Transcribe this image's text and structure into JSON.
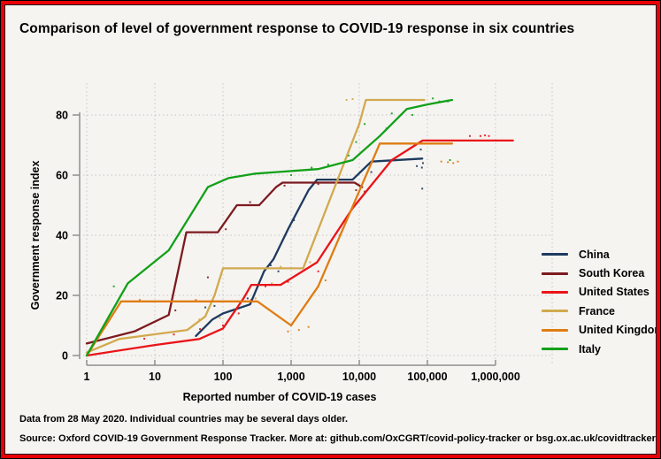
{
  "title": "Comparison of level of government response to COVID-19 response in six countries",
  "footer": {
    "line1": "Data from 28 May 2020. Individual countries may be several days older.",
    "line2": "Source: Oxford COVID-19 Government Response Tracker. More at: github.com/OxCGRT/covid-policy-tracker or bsg.ox.ac.uk/covidtracker"
  },
  "colors": {
    "grid": "#c6c6c6",
    "axis": "#8f8f8f",
    "text": "#000000",
    "background": "#f5f4f1",
    "frame_red": "#e90007"
  },
  "chart_data": {
    "type": "line",
    "title": "Comparison of level of government response to COVID-19 response in six countries",
    "xlabel": "Reported number of COVID-19 cases",
    "ylabel": "Government response index",
    "x_scale": "log",
    "xlim": [
      1,
      2500000
    ],
    "ylim": [
      0,
      88
    ],
    "grid": "dotted",
    "legend_position": "right",
    "x_ticks": [
      {
        "value": 1,
        "label": "1"
      },
      {
        "value": 10,
        "label": "10"
      },
      {
        "value": 100,
        "label": "100"
      },
      {
        "value": 1000,
        "label": "1,000"
      },
      {
        "value": 10000,
        "label": "10,000"
      },
      {
        "value": 100000,
        "label": "100,000"
      },
      {
        "value": 1000000,
        "label": "1,000,000"
      }
    ],
    "y_ticks": [
      {
        "value": 0,
        "label": "0"
      },
      {
        "value": 20,
        "label": "20"
      },
      {
        "value": 40,
        "label": "40"
      },
      {
        "value": 60,
        "label": "60"
      },
      {
        "value": 80,
        "label": "80"
      }
    ],
    "series": [
      {
        "name": "China",
        "color": "#1e3a5f",
        "points": [
          [
            40,
            6.5
          ],
          [
            70,
            12
          ],
          [
            100,
            14
          ],
          [
            250,
            17
          ],
          [
            400,
            28
          ],
          [
            550,
            32
          ],
          [
            900,
            42
          ],
          [
            1800,
            55
          ],
          [
            2400,
            58.5
          ],
          [
            8000,
            58.5
          ],
          [
            15000,
            64.5
          ],
          [
            84000,
            65.5
          ]
        ],
        "dots": [
          [
            55,
            16
          ],
          [
            75,
            16.5
          ],
          [
            230,
            19
          ],
          [
            500,
            30
          ],
          [
            650,
            28
          ],
          [
            1100,
            45
          ],
          [
            15000,
            61
          ],
          [
            70000,
            63
          ],
          [
            80000,
            68.5
          ],
          [
            83000,
            62.5
          ],
          [
            84000,
            55.5
          ],
          [
            86000,
            64
          ]
        ]
      },
      {
        "name": "South Korea",
        "color": "#7d1a20",
        "points": [
          [
            1,
            4
          ],
          [
            5,
            8
          ],
          [
            16,
            13.5
          ],
          [
            29,
            41
          ],
          [
            84,
            41
          ],
          [
            160,
            50
          ],
          [
            340,
            50
          ],
          [
            600,
            56
          ],
          [
            750,
            57.5
          ],
          [
            8500,
            57.5
          ],
          [
            11000,
            56
          ]
        ],
        "dots": [
          [
            1.5,
            5
          ],
          [
            20,
            15
          ],
          [
            60,
            26
          ],
          [
            110,
            42
          ],
          [
            250,
            51
          ],
          [
            800,
            56.5
          ],
          [
            2500,
            57
          ],
          [
            9000,
            55
          ],
          [
            12000,
            54.5
          ]
        ]
      },
      {
        "name": "United States",
        "color": "#ea1418",
        "points": [
          [
            1,
            0
          ],
          [
            10,
            3.5
          ],
          [
            45,
            5.5
          ],
          [
            100,
            9
          ],
          [
            200,
            19
          ],
          [
            260,
            23.5
          ],
          [
            700,
            23.5
          ],
          [
            2400,
            31
          ],
          [
            8000,
            49
          ],
          [
            30000,
            65
          ],
          [
            85000,
            71.5
          ],
          [
            1800000,
            71.5
          ]
        ],
        "dots": [
          [
            7,
            5.6
          ],
          [
            19,
            7
          ],
          [
            46,
            8.8
          ],
          [
            100,
            10
          ],
          [
            170,
            14
          ],
          [
            260,
            18.5
          ],
          [
            420,
            23
          ],
          [
            900,
            24.5
          ],
          [
            2500,
            28
          ],
          [
            5200,
            40
          ],
          [
            420000,
            73
          ],
          [
            600000,
            73
          ],
          [
            700000,
            73.2
          ],
          [
            800000,
            73
          ]
        ]
      },
      {
        "name": "France",
        "color": "#d2a94e",
        "points": [
          [
            1,
            1
          ],
          [
            3,
            5.5
          ],
          [
            30,
            8.5
          ],
          [
            55,
            13
          ],
          [
            75,
            20
          ],
          [
            100,
            29
          ],
          [
            1500,
            29
          ],
          [
            10000,
            77
          ],
          [
            12500,
            85
          ],
          [
            90000,
            85
          ]
        ],
        "dots": [
          [
            45,
            12
          ],
          [
            90,
            12.5
          ],
          [
            300,
            19
          ],
          [
            520,
            24
          ],
          [
            700,
            29.5
          ],
          [
            1900,
            31
          ],
          [
            6500,
            85
          ],
          [
            8000,
            85.3
          ]
        ]
      },
      {
        "name": "United Kingdom",
        "color": "#e07c12",
        "points": [
          [
            1,
            0
          ],
          [
            3.2,
            18
          ],
          [
            320,
            18
          ],
          [
            1000,
            10
          ],
          [
            2500,
            23
          ],
          [
            20000,
            70.5
          ],
          [
            230000,
            70.5
          ]
        ],
        "dots": [
          [
            6,
            18.5
          ],
          [
            40,
            18.5
          ],
          [
            900,
            8
          ],
          [
            1300,
            8.5
          ],
          [
            1800,
            9.5
          ],
          [
            3200,
            25
          ],
          [
            160000,
            64.5
          ],
          [
            200000,
            64.3
          ],
          [
            240000,
            64
          ],
          [
            280000,
            64.5
          ]
        ]
      },
      {
        "name": "Italy",
        "color": "#12a018",
        "points": [
          [
            1,
            0
          ],
          [
            4,
            24
          ],
          [
            16,
            35
          ],
          [
            60,
            56
          ],
          [
            120,
            59
          ],
          [
            300,
            60.5
          ],
          [
            600,
            61
          ],
          [
            2500,
            62
          ],
          [
            8000,
            65
          ],
          [
            20000,
            73
          ],
          [
            50000,
            82
          ],
          [
            100000,
            83.5
          ],
          [
            230000,
            85
          ]
        ],
        "dots": [
          [
            2.5,
            23
          ],
          [
            1000,
            60
          ],
          [
            2000,
            62.5
          ],
          [
            3500,
            63.5
          ],
          [
            7000,
            66.5
          ],
          [
            9000,
            71
          ],
          [
            12000,
            77
          ],
          [
            25000,
            75.5
          ],
          [
            30000,
            80.5
          ],
          [
            60000,
            80
          ],
          [
            120000,
            85.5
          ],
          [
            150000,
            84.5
          ],
          [
            200000,
            84.5
          ],
          [
            215000,
            65
          ]
        ]
      }
    ]
  }
}
